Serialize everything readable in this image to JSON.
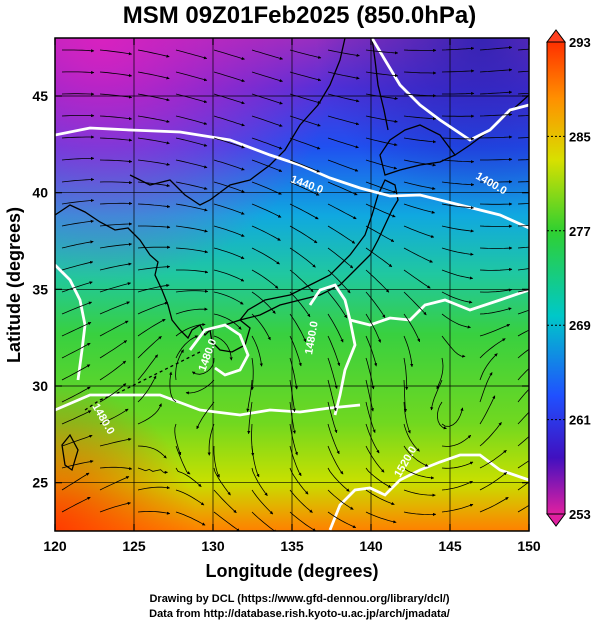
{
  "title": "MSM 09Z01Feb2025 (850.0hPa)",
  "axes": {
    "xlabel": "Longitude (degrees)",
    "ylabel": "Latitude  (degrees)",
    "xlim": [
      120,
      150
    ],
    "ylim": [
      22.5,
      48
    ],
    "xticks": [
      "120",
      "125",
      "130",
      "135",
      "140",
      "145",
      "150"
    ],
    "yticks": [
      "25",
      "30",
      "35",
      "40",
      "45"
    ]
  },
  "colorbar": {
    "range": [
      253,
      293
    ],
    "ticks": [
      "293",
      "285",
      "277",
      "269",
      "261",
      "253"
    ]
  },
  "contour_labels": [
    "1440.0",
    "1400.0",
    "1480.0",
    "1480.0",
    "1520.0",
    "1480.0"
  ],
  "credits": {
    "line1": "Drawing by DCL (https://www.gfd-dennou.org/library/dcl/)",
    "line2": "Data from http://database.rish.kyoto-u.ac.jp/arch/jmadata/"
  },
  "colors": {
    "cold": "#c020c0",
    "cool": "#2040e0",
    "mild": "#00c8c8",
    "warm": "#30d030",
    "hot": "#ff3000"
  }
}
